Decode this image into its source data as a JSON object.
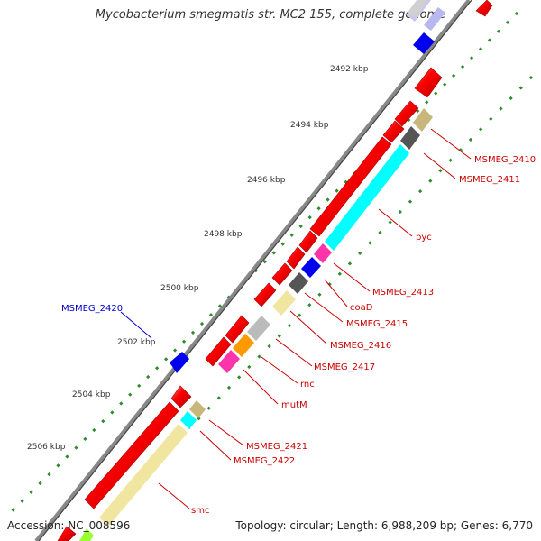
{
  "title": "Mycobacterium smegmatis str. MC2 155, complete genome",
  "accession": "Accession: NC_008596",
  "stats": "Topology: circular; Length: 6,988,209 bp; Genes: 6,770",
  "colors": {
    "forward_gene": "#ff0000",
    "reverse_gene": "#0000ff",
    "backbone": "#666666",
    "ruler_dots": "#2e8b2e",
    "label_line_forward": "#cc0000",
    "label_line_reverse": "#0000cc",
    "cog_cyan": "#00ffff",
    "cog_khaki": "#c8b67a",
    "cog_pink": "#ff33aa",
    "cog_orange": "#ff9900",
    "cog_gray": "#bbbbbb",
    "cog_darkgray": "#555555",
    "cog_lightyellow": "#f0e6a0"
  },
  "ruler_ticks": [
    "2492 kbp",
    "2494 kbp",
    "2496 kbp",
    "2498 kbp",
    "2500 kbp",
    "2502 kbp",
    "2504 kbp",
    "2506 kbp"
  ],
  "gene_labels": [
    "MSMEG_2410",
    "MSMEG_2411",
    "pyc",
    "MSMEG_2413",
    "coaD",
    "MSMEG_2415",
    "MSMEG_2416",
    "MSMEG_2417",
    "rnc",
    "mutM",
    "MSMEG_2421",
    "MSMEG_2422",
    "smc",
    "MSMEG_2420"
  ]
}
